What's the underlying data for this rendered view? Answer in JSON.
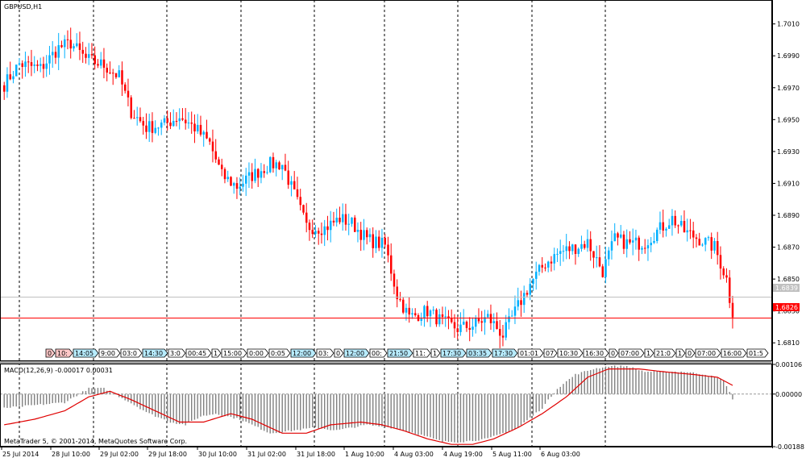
{
  "main_chart": {
    "title": "GBPUSD,H1",
    "y_ticks": [
      "1.7010",
      "1.6990",
      "1.6970",
      "1.6950",
      "1.6930",
      "1.6910",
      "1.6890",
      "1.6870",
      "1.6850",
      "1.6830",
      "1.6810"
    ],
    "bid_label": "1.6826",
    "ask_label": "1.6839",
    "copyright": "MetaTrader 5, © 2001-2014, MetaQuotes Software Corp."
  },
  "macd": {
    "title": "MACD(12,26,9) -0.00017 0.00031",
    "y_ticks": [
      "0.00106",
      "0.00000",
      "-0.00188"
    ]
  },
  "x_axis": {
    "labels": [
      "25 Jul 2014",
      "28 Jul 10:00",
      "29 Jul 02:00",
      "29 Jul 18:00",
      "30 Jul 10:00",
      "31 Jul 02:00",
      "31 Jul 18:00",
      "1 Aug 10:00",
      "4 Aug 03:00",
      "4 Aug 19:00",
      "5 Aug 11:00",
      "6 Aug 03:00"
    ]
  },
  "event_strip": {
    "labels": [
      "0",
      "10:",
      "14:05",
      "9:00",
      "03:0",
      "14:30",
      "3:0",
      "00:45",
      "1",
      "15:00",
      "0:00",
      "0:05",
      "12:00",
      "03:",
      "0",
      "12:00",
      "00:",
      "21:50",
      "11:",
      "1",
      "17:30",
      "03:35",
      "17:30",
      "01:01",
      "07",
      "10:30",
      "16:30",
      "0",
      "07:00",
      "1",
      "21:0",
      "1",
      "0",
      "07:00",
      "16:00",
      "01:5"
    ]
  },
  "colors": {
    "bull": "#00b0ff",
    "bear": "#ff0000",
    "grid": "#000000",
    "bid_line": "#ff0000",
    "ask_line": "#c0c0c0",
    "signal_line": "#e00000",
    "histogram": "#808080"
  },
  "chart_data": [
    {
      "type": "candlestick",
      "title": "GBPUSD,H1",
      "ylim": [
        1.6799,
        1.7025
      ],
      "y_ticks": [
        1.701,
        1.699,
        1.697,
        1.695,
        1.693,
        1.691,
        1.689,
        1.687,
        1.685,
        1.683,
        1.681
      ],
      "bid": 1.6826,
      "ask": 1.6839,
      "grid": "vertical dashed",
      "series": [
        {
          "name": "close",
          "anchors": [
            [
              0,
              1.6972
            ],
            [
              5,
              1.6985
            ],
            [
              12,
              1.6982
            ],
            [
              18,
              1.6995
            ],
            [
              22,
              1.6998
            ],
            [
              27,
              1.6988
            ],
            [
              33,
              1.6984
            ],
            [
              38,
              1.6977
            ],
            [
              42,
              1.6955
            ],
            [
              47,
              1.6945
            ],
            [
              53,
              1.6947
            ],
            [
              58,
              1.6952
            ],
            [
              63,
              1.6945
            ],
            [
              68,
              1.6935
            ],
            [
              72,
              1.6915
            ],
            [
              77,
              1.6908
            ],
            [
              82,
              1.6915
            ],
            [
              88,
              1.6922
            ],
            [
              92,
              1.6922
            ],
            [
              97,
              1.6898
            ],
            [
              100,
              1.6883
            ],
            [
              106,
              1.6882
            ],
            [
              111,
              1.6888
            ],
            [
              115,
              1.6885
            ],
            [
              120,
              1.6875
            ],
            [
              126,
              1.6871
            ],
            [
              130,
              1.684
            ],
            [
              134,
              1.6826
            ],
            [
              140,
              1.683
            ],
            [
              145,
              1.6823
            ],
            [
              150,
              1.6819
            ],
            [
              155,
              1.6821
            ],
            [
              160,
              1.6826
            ],
            [
              165,
              1.6815
            ],
            [
              170,
              1.6833
            ],
            [
              174,
              1.6847
            ],
            [
              179,
              1.686
            ],
            [
              184,
              1.6867
            ],
            [
              189,
              1.687
            ],
            [
              193,
              1.6873
            ],
            [
              198,
              1.6855
            ],
            [
              202,
              1.6875
            ],
            [
              207,
              1.6872
            ],
            [
              212,
              1.6873
            ],
            [
              216,
              1.688
            ],
            [
              221,
              1.6888
            ],
            [
              225,
              1.688
            ],
            [
              230,
              1.6875
            ],
            [
              235,
              1.687
            ],
            [
              239,
              1.685
            ],
            [
              241,
              1.6826
            ]
          ]
        }
      ]
    },
    {
      "type": "bar",
      "title": "MACD(12,26,9) -0.00017 0.00031",
      "ylim": [
        -0.00188,
        0.00106
      ],
      "y_ticks": [
        0.00106,
        0.0,
        -0.00188
      ],
      "series": [
        {
          "name": "histogram",
          "anchors": [
            [
              0,
              -0.0005
            ],
            [
              10,
              -0.0004
            ],
            [
              20,
              -0.0003
            ],
            [
              28,
              0.0002
            ],
            [
              33,
              0.0002
            ],
            [
              40,
              -0.0002
            ],
            [
              48,
              -0.0007
            ],
            [
              55,
              -0.001
            ],
            [
              60,
              -0.0011
            ],
            [
              65,
              -0.0008
            ],
            [
              70,
              -0.0007
            ],
            [
              78,
              -0.0009
            ],
            [
              88,
              -0.0014
            ],
            [
              96,
              -0.0013
            ],
            [
              103,
              -0.0012
            ],
            [
              110,
              -0.0013
            ],
            [
              120,
              -0.0011
            ],
            [
              128,
              -0.0012
            ],
            [
              136,
              -0.0014
            ],
            [
              145,
              -0.0017
            ],
            [
              152,
              -0.0017
            ],
            [
              160,
              -0.0016
            ],
            [
              170,
              -0.0012
            ],
            [
              178,
              -0.0005
            ],
            [
              183,
              0.0002
            ],
            [
              189,
              0.0007
            ],
            [
              195,
              0.0009
            ],
            [
              200,
              0.001
            ],
            [
              206,
              0.001
            ],
            [
              212,
              0.0008
            ],
            [
              218,
              0.0008
            ],
            [
              225,
              0.0008
            ],
            [
              232,
              0.0007
            ],
            [
              238,
              0.0005
            ],
            [
              241,
              -0.00017
            ]
          ]
        },
        {
          "name": "signal",
          "anchors": [
            [
              0,
              -0.0011
            ],
            [
              10,
              -0.0009
            ],
            [
              20,
              -0.0006
            ],
            [
              28,
              -0.0001
            ],
            [
              35,
              0.0001
            ],
            [
              42,
              -0.0002
            ],
            [
              50,
              -0.0006
            ],
            [
              58,
              -0.001
            ],
            [
              66,
              -0.001
            ],
            [
              75,
              -0.0007
            ],
            [
              82,
              -0.0009
            ],
            [
              92,
              -0.0014
            ],
            [
              100,
              -0.0014
            ],
            [
              108,
              -0.0011
            ],
            [
              118,
              -0.001
            ],
            [
              125,
              -0.0011
            ],
            [
              132,
              -0.0013
            ],
            [
              140,
              -0.0016
            ],
            [
              148,
              -0.0018
            ],
            [
              155,
              -0.0018
            ],
            [
              162,
              -0.0016
            ],
            [
              170,
              -0.0012
            ],
            [
              178,
              -0.0007
            ],
            [
              186,
              -0.0001
            ],
            [
              193,
              0.0006
            ],
            [
              200,
              0.0009
            ],
            [
              210,
              0.0009
            ],
            [
              218,
              0.0008
            ],
            [
              228,
              0.0007
            ],
            [
              236,
              0.0006
            ],
            [
              241,
              0.00031
            ]
          ]
        }
      ]
    }
  ]
}
